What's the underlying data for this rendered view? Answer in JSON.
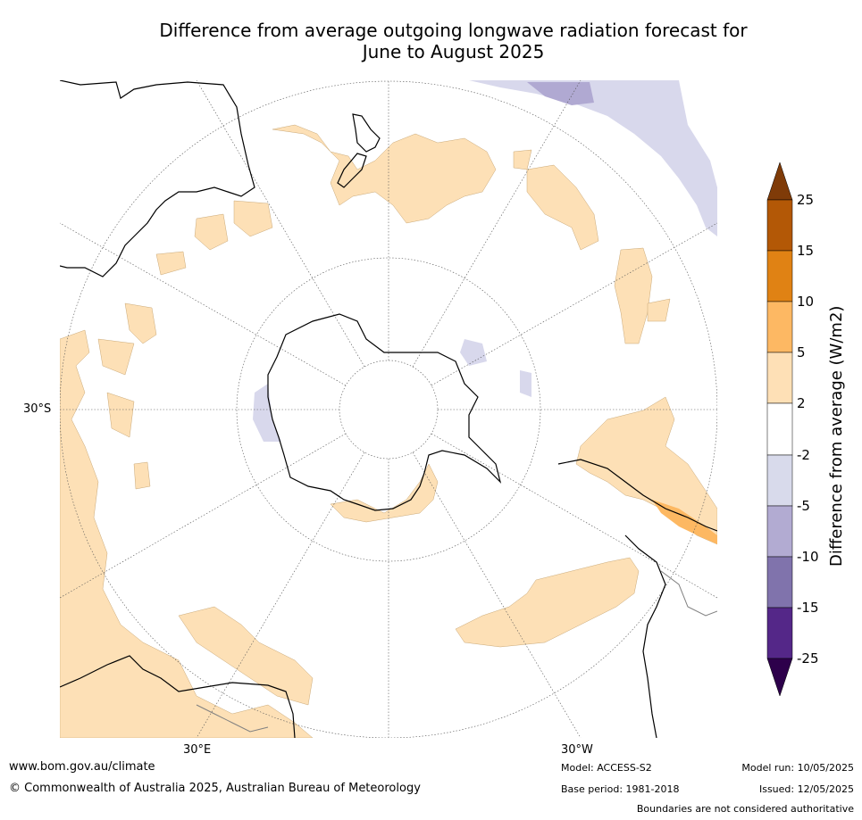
{
  "title": {
    "line1": "Difference from average outgoing longwave radiation forecast for",
    "line2": "June to August 2025"
  },
  "map": {
    "projection": "south-polar stereographic",
    "graticule_labels": {
      "lat_30s": "30°S",
      "lon_30e": "30°E",
      "lon_30w": "30°W"
    },
    "colors": {
      "ocean": "#ffffff",
      "pos_2_5": "#fde0b6",
      "neg_2_5": "#d8d8ec",
      "neg_5_10": "#b0a9d2",
      "pos_5_10": "#fdb862",
      "coast": "#000000",
      "border": "#808080",
      "grid": "#555555"
    }
  },
  "colorbar": {
    "title": "Difference from average (W/m2)",
    "ticks": [
      "25",
      "15",
      "10",
      "5",
      "2",
      "-2",
      "-5",
      "-10",
      "-15",
      "-25"
    ],
    "colors": [
      "#7f3b08",
      "#b35806",
      "#e08214",
      "#fdb863",
      "#fee0b6",
      "#ffffff",
      "#d8daeb",
      "#b2abd2",
      "#8073ac",
      "#542788",
      "#2d004b"
    ]
  },
  "footer": {
    "website": "www.bom.gov.au/climate",
    "copyright": "© Commonwealth of Australia 2025, Australian Bureau of Meteorology",
    "model": "Model: ACCESS-S2",
    "base_period": "Base period: 1981-2018",
    "model_run": "Model run: 10/05/2025",
    "issued": "Issued: 12/05/2025",
    "disclaimer": "Boundaries are not considered authoritative"
  }
}
